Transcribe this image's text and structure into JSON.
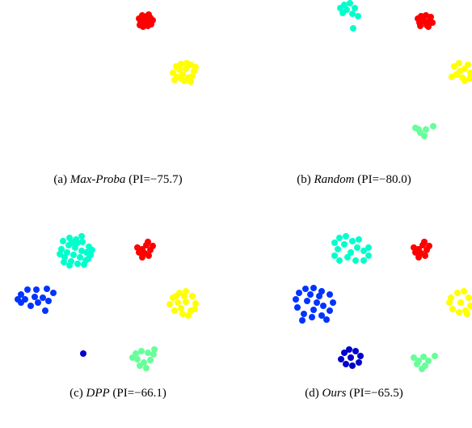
{
  "chart_data": [
    {
      "type": "scatter",
      "title": "",
      "caption": {
        "label": "(a)",
        "method": "Max-Proba",
        "pi_text": "(PI=−75.7)",
        "pi": -75.7
      },
      "series": [
        {
          "color": "#ff0000",
          "points": [
            [
              178,
              24
            ],
            [
              182,
              20
            ],
            [
              185,
              27
            ],
            [
              174,
              28
            ],
            [
              186,
              22
            ],
            [
              176,
              19
            ],
            [
              183,
              32
            ],
            [
              189,
              25
            ],
            [
              172,
              23
            ],
            [
              180,
              30
            ],
            [
              187,
              30
            ],
            [
              177,
              33
            ],
            [
              184,
              18
            ],
            [
              173,
              31
            ],
            [
              179,
              26
            ]
          ]
        },
        {
          "color": "#ffff00",
          "points": [
            [
              218,
              82
            ],
            [
              224,
              79
            ],
            [
              230,
              85
            ],
            [
              236,
              80
            ],
            [
              240,
              88
            ],
            [
              233,
              96
            ],
            [
              226,
              92
            ],
            [
              219,
              95
            ],
            [
              214,
              90
            ],
            [
              228,
              100
            ],
            [
              238,
              94
            ],
            [
              222,
              86
            ],
            [
              242,
              83
            ],
            [
              216,
              99
            ],
            [
              231,
              78
            ],
            [
              236,
              101
            ],
            [
              224,
              97
            ]
          ]
        }
      ]
    },
    {
      "type": "scatter",
      "title": "",
      "caption": {
        "label": "(b)",
        "method": "Random",
        "pi_text": "(PI=−80.0)",
        "pi": -80.0
      },
      "series": [
        {
          "color": "#ff0000",
          "points": [
            [
              523,
              24
            ],
            [
              527,
              19
            ],
            [
              531,
              26
            ],
            [
              519,
              28
            ],
            [
              533,
              21
            ],
            [
              521,
              20
            ],
            [
              528,
              31
            ],
            [
              535,
              28
            ],
            [
              517,
              23
            ],
            [
              526,
              27
            ],
            [
              530,
              33
            ],
            [
              520,
              32
            ]
          ]
        },
        {
          "color": "#00ffcc",
          "points": [
            [
              421,
              10
            ],
            [
              426,
              6
            ],
            [
              433,
              4
            ],
            [
              439,
              10
            ],
            [
              424,
              16
            ],
            [
              436,
              17
            ],
            [
              429,
              12
            ],
            [
              443,
              20
            ],
            [
              437,
              35
            ]
          ]
        },
        {
          "color": "#ffff00",
          "points": [
            [
              562,
              82
            ],
            [
              568,
              78
            ],
            [
              575,
              85
            ],
            [
              579,
              80
            ],
            [
              582,
              90
            ],
            [
              572,
              96
            ],
            [
              565,
              92
            ],
            [
              559,
              95
            ],
            [
              575,
              100
            ],
            [
              569,
              88
            ],
            [
              581,
              97
            ]
          ]
        },
        {
          "color": "#66ff99",
          "points": [
            [
              514,
              158
            ],
            [
              520,
              164
            ],
            [
              527,
              160
            ],
            [
              536,
              156
            ],
            [
              525,
              168
            ],
            [
              518,
              160
            ]
          ]
        }
      ]
    },
    {
      "type": "scatter",
      "title": "",
      "caption": {
        "label": "(c)",
        "method": "DPP",
        "pi_text": "(PI=−66.1)",
        "pi": -66.1
      },
      "series": [
        {
          "color": "#ff0000",
          "points": [
            [
              176,
              308
            ],
            [
              181,
              303
            ],
            [
              186,
              309
            ],
            [
              172,
              312
            ],
            [
              184,
              316
            ],
            [
              176,
              318
            ],
            [
              189,
              304
            ],
            [
              179,
              313
            ],
            [
              170,
              306
            ],
            [
              183,
              299
            ]
          ]
        },
        {
          "color": "#00ffcc",
          "points": [
            [
              78,
              298
            ],
            [
              86,
              294
            ],
            [
              94,
              296
            ],
            [
              102,
              299
            ],
            [
              110,
              305
            ],
            [
              112,
              315
            ],
            [
              106,
              322
            ],
            [
              96,
              326
            ],
            [
              88,
              323
            ],
            [
              80,
              318
            ],
            [
              76,
              308
            ],
            [
              85,
              303
            ],
            [
              93,
              306
            ],
            [
              101,
              310
            ],
            [
              91,
              315
            ],
            [
              83,
              312
            ],
            [
              99,
              318
            ],
            [
              107,
              312
            ],
            [
              89,
              300
            ],
            [
              104,
              327
            ],
            [
              74,
              314
            ],
            [
              96,
              300
            ],
            [
              114,
              309
            ],
            [
              86,
              328
            ],
            [
              101,
              292
            ],
            [
              79,
              324
            ],
            [
              109,
              320
            ]
          ]
        },
        {
          "color": "#0033ff",
          "points": [
            [
              26,
              364
            ],
            [
              34,
              358
            ],
            [
              45,
              358
            ],
            [
              58,
              357
            ],
            [
              66,
              362
            ],
            [
              60,
              372
            ],
            [
              47,
              374
            ],
            [
              38,
              378
            ],
            [
              26,
              374
            ],
            [
              22,
              370
            ],
            [
              53,
              368
            ],
            [
              43,
              367
            ],
            [
              56,
              384
            ],
            [
              31,
              370
            ]
          ]
        },
        {
          "color": "#ffff00",
          "points": [
            [
              214,
              368
            ],
            [
              222,
              362
            ],
            [
              230,
              360
            ],
            [
              238,
              366
            ],
            [
              242,
              375
            ],
            [
              236,
              384
            ],
            [
              226,
              388
            ],
            [
              216,
              384
            ],
            [
              210,
              376
            ],
            [
              220,
              374
            ],
            [
              230,
              373
            ],
            [
              224,
              381
            ],
            [
              233,
              390
            ],
            [
              241,
              382
            ],
            [
              218,
              366
            ],
            [
              228,
              366
            ]
          ]
        },
        {
          "color": "#0000cc",
          "points": [
            [
              103,
              437
            ]
          ]
        },
        {
          "color": "#66ff99",
          "points": [
            [
              168,
              437
            ],
            [
              175,
              434
            ],
            [
              183,
              436
            ],
            [
              190,
              438
            ],
            [
              186,
              445
            ],
            [
              178,
              448
            ],
            [
              170,
              444
            ],
            [
              164,
              442
            ],
            [
              173,
              452
            ],
            [
              181,
              455
            ],
            [
              191,
              432
            ]
          ]
        }
      ]
    },
    {
      "type": "scatter",
      "title": "",
      "caption": {
        "label": "(d)",
        "method": "Ours",
        "pi_text": "(PI=−65.5)",
        "pi": -65.5
      },
      "series": [
        {
          "color": "#ff0000",
          "points": [
            [
              518,
              308
            ],
            [
              523,
              303
            ],
            [
              528,
              309
            ],
            [
              514,
              312
            ],
            [
              526,
              316
            ],
            [
              518,
              318
            ],
            [
              531,
              304
            ],
            [
              521,
              313
            ],
            [
              512,
              306
            ],
            [
              525,
              299
            ]
          ]
        },
        {
          "color": "#00ffcc",
          "points": [
            [
              414,
              300
            ],
            [
              420,
              294
            ],
            [
              428,
              292
            ],
            [
              436,
              298
            ],
            [
              442,
              306
            ],
            [
              450,
              310
            ],
            [
              456,
              316
            ],
            [
              450,
              322
            ],
            [
              440,
              322
            ],
            [
              430,
              318
            ],
            [
              420,
              322
            ],
            [
              414,
              316
            ],
            [
              418,
              308
            ],
            [
              426,
              302
            ],
            [
              444,
              296
            ],
            [
              434,
              312
            ],
            [
              456,
              306
            ]
          ]
        },
        {
          "color": "#0033ff",
          "points": [
            [
              370,
              362
            ],
            [
              378,
              357
            ],
            [
              388,
              356
            ],
            [
              398,
              360
            ],
            [
              408,
              364
            ],
            [
              412,
              374
            ],
            [
              408,
              384
            ],
            [
              398,
              390
            ],
            [
              386,
              392
            ],
            [
              376,
              388
            ],
            [
              368,
              380
            ],
            [
              366,
              370
            ],
            [
              380,
              372
            ],
            [
              392,
              374
            ],
            [
              400,
              378
            ],
            [
              388,
              383
            ],
            [
              404,
              395
            ],
            [
              374,
              396
            ],
            [
              395,
              366
            ],
            [
              384,
              364
            ]
          ]
        },
        {
          "color": "#ffff00",
          "points": [
            [
              558,
              368
            ],
            [
              566,
              362
            ],
            [
              574,
              360
            ],
            [
              580,
              368
            ],
            [
              582,
              378
            ],
            [
              576,
              384
            ],
            [
              568,
              386
            ],
            [
              560,
              382
            ],
            [
              556,
              374
            ],
            [
              570,
              374
            ],
            [
              578,
              388
            ]
          ]
        },
        {
          "color": "#0000cc",
          "points": [
            [
              426,
              436
            ],
            [
              432,
              432
            ],
            [
              440,
              434
            ],
            [
              446,
              440
            ],
            [
              444,
              448
            ],
            [
              436,
              452
            ],
            [
              428,
              450
            ],
            [
              422,
              444
            ],
            [
              434,
              442
            ]
          ]
        },
        {
          "color": "#66ff99",
          "points": [
            [
              512,
              442
            ],
            [
              518,
              446
            ],
            [
              524,
              441
            ],
            [
              530,
              446
            ],
            [
              538,
              440
            ],
            [
              526,
              452
            ],
            [
              516,
              450
            ],
            [
              522,
              456
            ]
          ]
        }
      ]
    }
  ]
}
